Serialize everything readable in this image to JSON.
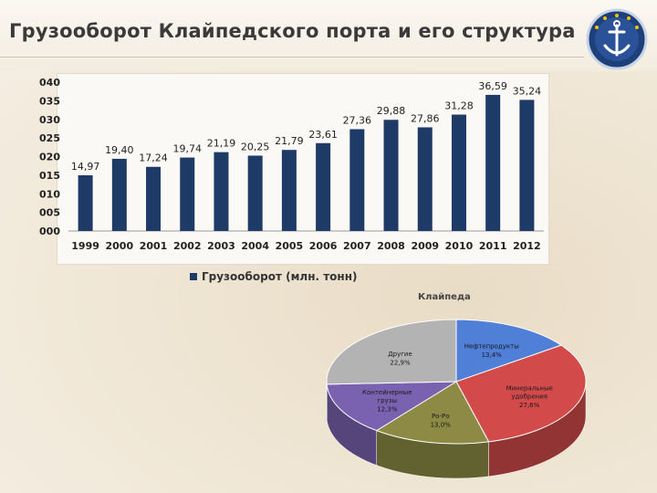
{
  "header": {
    "title": "Грузооборот Клайпедского порта и его структура"
  },
  "chart_data": [
    {
      "type": "bar",
      "categories": [
        "1999",
        "2000",
        "2001",
        "2002",
        "2003",
        "2004",
        "2005",
        "2006",
        "2007",
        "2008",
        "2009",
        "2010",
        "2011",
        "2012"
      ],
      "series": [
        {
          "name": "Грузооборот (млн. тонн)",
          "values": [
            14.97,
            19.4,
            17.24,
            19.74,
            21.19,
            20.25,
            21.79,
            23.61,
            27.36,
            29.88,
            27.86,
            31.28,
            36.59,
            35.24
          ]
        }
      ],
      "value_labels": [
        "14,97",
        "19,40",
        "17,24",
        "19,74",
        "21,19",
        "20,25",
        "21,79",
        "23,61",
        "27,36",
        "29,88",
        "27,86",
        "31,28",
        "36,59",
        "35,24"
      ],
      "y_ticks": [
        "000",
        "005",
        "010",
        "015",
        "020",
        "025",
        "030",
        "035",
        "040"
      ],
      "ylim": [
        0,
        40
      ],
      "legend_position": "bottom",
      "bar_color": "#1e3a66"
    },
    {
      "type": "pie",
      "title": "Клайпеда",
      "slices": [
        {
          "label": "Нефтепродукты",
          "value_label": "13,4%",
          "value": 13.4,
          "color": "#4f7fd6"
        },
        {
          "label": "Минеральные удобрения",
          "value_label": "27,6%",
          "value": 27.6,
          "color": "#d24a4a"
        },
        {
          "label": "Ро-Ро",
          "value_label": "13,0%",
          "value": 13.0,
          "color": "#8c8a45"
        },
        {
          "label": "Контейнерные грузы",
          "value_label": "12,3%",
          "value": 12.3,
          "color": "#7a62b0"
        },
        {
          "label": "Другие",
          "value_label": "22,9%",
          "value": 22.9,
          "color": "#b3b3b3"
        }
      ]
    }
  ]
}
